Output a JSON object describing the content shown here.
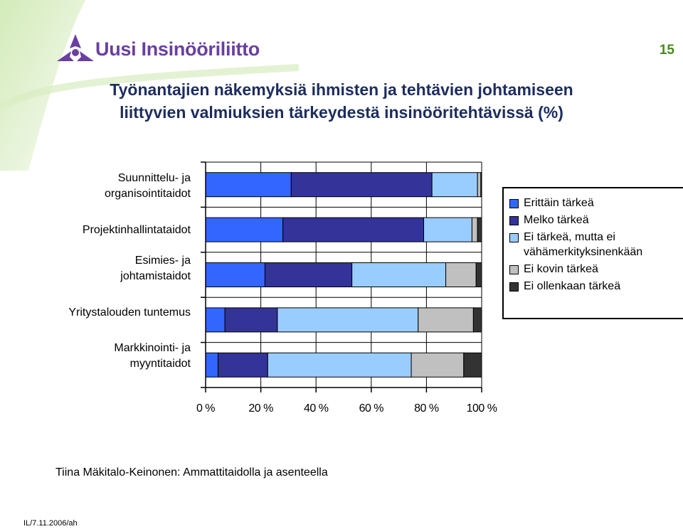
{
  "header": {
    "logo_text": "Uusi Insinööriliitto",
    "page_number": "15"
  },
  "title": {
    "line1": "Työnantajien näkemyksiä ihmisten ja tehtävien johtamiseen",
    "line2": "liittyvien valmiuksien tärkeydestä insinööritehtävissä (%)"
  },
  "colors": {
    "brand_purple": "#6a3fa0",
    "brand_green": "#6ab42a",
    "title_navy": "#1c2d5e"
  },
  "chart_data": {
    "type": "bar",
    "orientation": "horizontal",
    "stacked": true,
    "categories": [
      [
        "Suunnittelu- ja",
        "organisointitaidot"
      ],
      [
        "Projektinhallintataidot"
      ],
      [
        "Esimies- ja",
        "johtamistaidot"
      ],
      [
        "Yritystalouden tuntemus"
      ],
      [
        "Markkinointi- ja",
        "myyntitaidot"
      ]
    ],
    "series": [
      {
        "name": "Erittäin tärkeä",
        "color": "#3366ff",
        "values": [
          31,
          28,
          21.5,
          7,
          4.5
        ]
      },
      {
        "name": "Melko tärkeä",
        "color": "#333399",
        "values": [
          51,
          51,
          31.5,
          19,
          18
        ]
      },
      {
        "name": "Ei tärkeä, mutta ei vähämerkityksinenkään",
        "color": "#99ccff",
        "values": [
          16.5,
          17.5,
          34,
          51,
          52
        ]
      },
      {
        "name": "Ei kovin tärkeä",
        "color": "#c0c0c0",
        "values": [
          1.2,
          2,
          11,
          20,
          19
        ]
      },
      {
        "name": "Ei ollenkaan tärkeä",
        "color": "#333333",
        "values": [
          0.3,
          1.5,
          2,
          3,
          6.5
        ]
      }
    ],
    "x_ticks": [
      "0 %",
      "20 %",
      "40 %",
      "60 %",
      "80 %",
      "100 %"
    ],
    "xlim": [
      0,
      100
    ],
    "grid": true,
    "legend_position": "right"
  },
  "footer": {
    "source": "Tiina Mäkitalo-Keinonen: Ammattitaidolla ja asenteella",
    "date": "IL/7.11.2006/ah"
  }
}
